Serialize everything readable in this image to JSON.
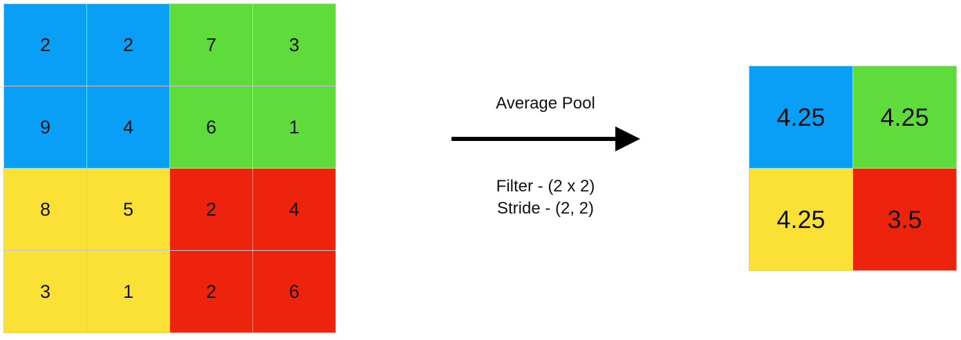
{
  "input": {
    "rows": [
      [
        2,
        2,
        7,
        3
      ],
      [
        9,
        4,
        6,
        1
      ],
      [
        8,
        5,
        2,
        4
      ],
      [
        3,
        1,
        2,
        6
      ]
    ]
  },
  "operation": {
    "title": "Average Pool",
    "filter": "Filter - (2 x 2)",
    "stride": "Stride - (2, 2)"
  },
  "output": {
    "rows": [
      [
        4.25,
        4.25
      ],
      [
        4.25,
        3.5
      ]
    ]
  }
}
